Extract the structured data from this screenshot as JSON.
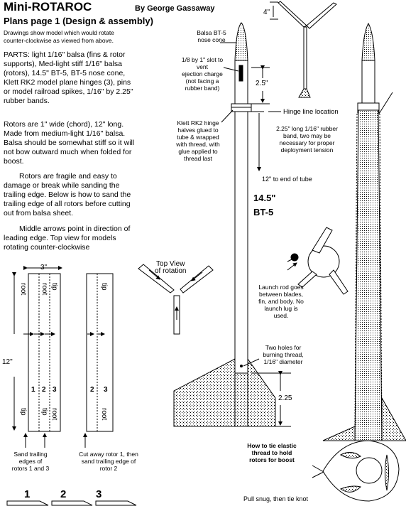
{
  "header": {
    "title": "Mini-ROTAROC",
    "author": "By George Gassaway",
    "subtitle": "Plans page 1 (Design & assembly)"
  },
  "intro": {
    "line1": "Drawings show model which would rotate",
    "line2": "counter-clockwise as viewed from above."
  },
  "parts": [
    "PARTS: light 1/16\" balsa (fins & rotor",
    "supports), Med-light stiff 1/16\" balsa",
    "(rotors), 14.5\" BT-5, BT-5 nose cone,",
    "Klett RK2 model plane hinges (3), pins",
    "or model railroad spikes, 1/16\" by 2.25\"",
    "rubber bands."
  ],
  "rotors_text": [
    "Rotors are 1\" wide (chord), 12\" long.",
    "Made from medium-light 1/16\" balsa.",
    "Balsa should be somewhat stiff so it will",
    "not bow outward much when folded for",
    "boost."
  ],
  "fragile_text": [
    "Rotors are fragile and easy to",
    "damage or break while sanding the",
    "trailing edge. Below  is how to sand the",
    "trailing edge of all rotors before cutting",
    "out from balsa sheet."
  ],
  "arrows_text": [
    "Middle arrows point in direction of",
    "leading edge. Top view for models",
    "rotating counter-clockwise"
  ],
  "rotor_sheet": {
    "width_label": "3\"",
    "length_label": "12\"",
    "root_label": "root",
    "tip_label": "tip",
    "numbers": [
      "1",
      "2",
      "3"
    ]
  },
  "sanding": {
    "left": [
      "Sand trailing",
      "edges of",
      "rotors 1 and 3"
    ],
    "right": [
      "Cut away rotor 1, then",
      "sand trailing edge of",
      "rotor 2"
    ]
  },
  "cross_sections": [
    "1",
    "2",
    "3"
  ],
  "top_view": [
    "Top View",
    "of rotation"
  ],
  "labels": {
    "dim_4": "4\"",
    "nose_cone": [
      "Balsa BT-5",
      "nose cone"
    ],
    "slot": [
      "1/8 by 1\" slot to",
      "vent",
      "ejection charge",
      "(not facing a",
      "rubber band)"
    ],
    "dim_25": "2.5\"",
    "hinge_line": "Hinge line location",
    "klett": [
      "Klett RK2 hinge",
      "halves glued to",
      "tube & wrapped",
      "with thread, with",
      "glue applied to",
      "thread last"
    ],
    "rubber_band": [
      "2.25\" long 1/16\" rubber",
      "band, two may be",
      "necessary for proper",
      "deployment tension"
    ],
    "end_of_tube": "12\" to end of tube",
    "tube_len": "14.5\"",
    "tube_type": "BT-5",
    "launch_rod": [
      "Launch rod goes",
      "between blades,",
      "fin, and body. No",
      "launch lug is",
      "used."
    ],
    "holes": [
      "Two holes for",
      "burning thread,",
      "1/16\" diameter"
    ],
    "dim_225": "2.25",
    "tie": [
      "How to tie elastic",
      "thread to hold",
      "rotors for boost"
    ],
    "pull": "Pull snug, then tie knot"
  }
}
